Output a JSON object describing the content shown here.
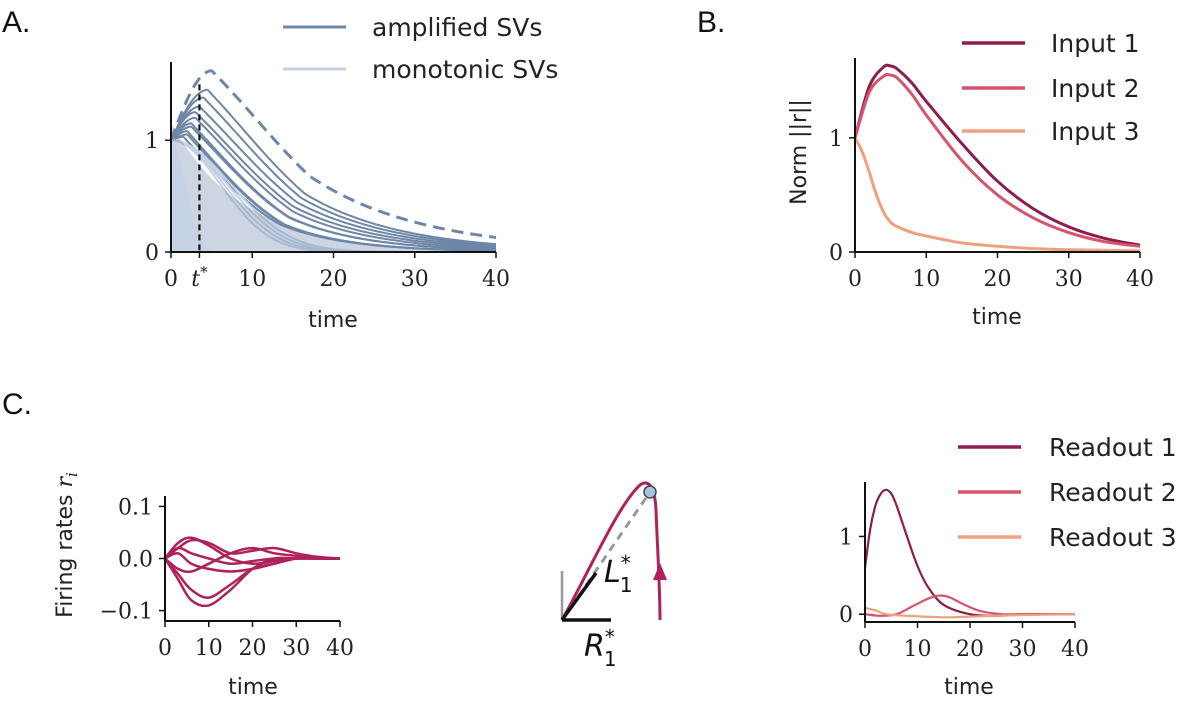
{
  "panels": {
    "a": {
      "letter": "A."
    },
    "b": {
      "letter": "B."
    },
    "c": {
      "letter": "C."
    }
  },
  "chart_data": [
    {
      "id": "A",
      "type": "line",
      "xlabel": "time",
      "ylabel": "",
      "xlim": [
        0,
        40
      ],
      "ylim": [
        0,
        1.7
      ],
      "xticks": [
        "0",
        "t*",
        "10",
        "20",
        "30",
        "40"
      ],
      "xtick_values": [
        0,
        3.5,
        10,
        20,
        30,
        40
      ],
      "yticks": [
        "0",
        "1"
      ],
      "ytick_values": [
        0,
        1
      ],
      "legend": {
        "placement": "top-center",
        "entries": [
          {
            "label": "amplified SVs",
            "color": "#6e87a8"
          },
          {
            "label": "monotonic SVs",
            "color": "#c3d2e6"
          }
        ]
      },
      "annotations": [
        {
          "type": "vline",
          "x": 3.5,
          "style": "dashed",
          "color": "#111111"
        }
      ],
      "series": [
        {
          "group": "envelope",
          "style": "dashed",
          "color": "#6e87a8",
          "peak_time": 5,
          "peak": 1.62,
          "end": 0.13
        },
        {
          "group": "amplified SVs",
          "color": "#6e87a8",
          "peak_time": 4.5,
          "peak": 1.45,
          "end": 0.07
        },
        {
          "group": "amplified SVs",
          "color": "#6e87a8",
          "peak_time": 4,
          "peak": 1.38,
          "end": 0.06
        },
        {
          "group": "amplified SVs",
          "color": "#6e87a8",
          "peak_time": 3.5,
          "peak": 1.3,
          "end": 0.05
        },
        {
          "group": "amplified SVs",
          "color": "#6e87a8",
          "peak_time": 3,
          "peak": 1.25,
          "end": 0.04
        },
        {
          "group": "amplified SVs",
          "color": "#6e87a8",
          "peak_time": 3,
          "peak": 1.2,
          "end": 0.03
        },
        {
          "group": "amplified SVs",
          "color": "#6e87a8",
          "peak_time": 2.5,
          "peak": 1.15,
          "end": 0.02
        },
        {
          "group": "amplified SVs",
          "color": "#6e87a8",
          "peak_time": 2.5,
          "peak": 1.12,
          "end": 0.02
        },
        {
          "group": "amplified SVs",
          "color": "#6e87a8",
          "peak_time": 2,
          "peak": 1.08,
          "end": 0.01
        },
        {
          "group": "amplified SVs",
          "color": "#6e87a8",
          "peak_time": 2,
          "peak": 1.05,
          "end": 0.01
        },
        {
          "group": "amplified SVs",
          "color": "#6e87a8",
          "peak_time": 1.5,
          "peak": 1.03,
          "end": 0.01
        },
        {
          "group": "monotonic SVs",
          "color": "#c3d2e6",
          "peak_time": 0,
          "peak": 1,
          "end": 0.0
        },
        {
          "group": "monotonic SVs",
          "color": "#c3d2e6",
          "peak_time": 0,
          "peak": 1,
          "end": 0.0
        },
        {
          "group": "monotonic SVs",
          "color": "#c3d2e6",
          "peak_time": 0,
          "peak": 1,
          "end": 0.0
        },
        {
          "group": "monotonic SVs",
          "color": "#c3d2e6",
          "peak_time": 0,
          "peak": 1,
          "end": 0.0
        }
      ]
    },
    {
      "id": "B",
      "type": "line",
      "xlabel": "time",
      "ylabel": "Norm ||r||",
      "xlim": [
        0,
        40
      ],
      "ylim": [
        0,
        1.7
      ],
      "xticks": [
        "0",
        "10",
        "20",
        "30",
        "40"
      ],
      "yticks": [
        "0",
        "1"
      ],
      "legend": {
        "placement": "top-right"
      },
      "series": [
        {
          "name": "Input 1",
          "color": "#8e1c4e",
          "x": [
            0,
            2,
            4,
            5,
            6,
            8,
            10,
            15,
            20,
            25,
            30,
            35,
            40
          ],
          "y": [
            1.0,
            1.45,
            1.62,
            1.63,
            1.6,
            1.48,
            1.32,
            0.95,
            0.62,
            0.38,
            0.22,
            0.12,
            0.06
          ]
        },
        {
          "name": "Input 2",
          "color": "#d6556b",
          "x": [
            0,
            2,
            4,
            5,
            6,
            8,
            10,
            15,
            20,
            25,
            30,
            35,
            40
          ],
          "y": [
            1.0,
            1.4,
            1.54,
            1.55,
            1.52,
            1.38,
            1.2,
            0.8,
            0.5,
            0.3,
            0.17,
            0.09,
            0.05
          ]
        },
        {
          "name": "Input 3",
          "color": "#f0a07e",
          "x": [
            0,
            1,
            2,
            3,
            4,
            5,
            6,
            8,
            10,
            15,
            20,
            25,
            30,
            40
          ],
          "y": [
            1.0,
            0.88,
            0.7,
            0.5,
            0.35,
            0.26,
            0.22,
            0.17,
            0.14,
            0.08,
            0.05,
            0.03,
            0.02,
            0.01
          ]
        }
      ]
    },
    {
      "id": "C1",
      "type": "line",
      "xlabel": "time",
      "ylabel": "Firing rates r_i",
      "xlim": [
        0,
        40
      ],
      "ylim": [
        -0.12,
        0.12
      ],
      "xticks": [
        "0",
        "10",
        "20",
        "30",
        "40"
      ],
      "yticks": [
        "0.1",
        "0.0",
        "−0.1"
      ],
      "ytick_values": [
        0.1,
        0.0,
        -0.1
      ],
      "series_color": "#b0215a",
      "series": [
        {
          "x": [
            0,
            3,
            6,
            10,
            15,
            20,
            25,
            30,
            35,
            40
          ],
          "y": [
            0.0,
            0.03,
            0.04,
            0.025,
            0.0,
            -0.01,
            -0.005,
            0.0,
            0.0,
            0.0
          ]
        },
        {
          "x": [
            0,
            3,
            6,
            10,
            15,
            20,
            25,
            30,
            35,
            40
          ],
          "y": [
            0.0,
            0.02,
            0.035,
            0.03,
            0.01,
            0.015,
            0.02,
            0.01,
            0.003,
            0.0
          ]
        },
        {
          "x": [
            0,
            3,
            6,
            10,
            15,
            20,
            25,
            30,
            35,
            40
          ],
          "y": [
            0.0,
            -0.04,
            -0.08,
            -0.09,
            -0.06,
            -0.02,
            0.0,
            0.0,
            0.0,
            0.0
          ]
        },
        {
          "x": [
            0,
            3,
            6,
            10,
            15,
            20,
            25,
            30,
            35,
            40
          ],
          "y": [
            0.0,
            -0.03,
            -0.06,
            -0.075,
            -0.05,
            -0.02,
            -0.01,
            0.0,
            0.0,
            0.0
          ]
        },
        {
          "x": [
            0,
            3,
            6,
            10,
            15,
            20,
            25,
            30,
            35,
            40
          ],
          "y": [
            0.0,
            0.01,
            -0.01,
            -0.02,
            -0.025,
            -0.02,
            -0.01,
            0.0,
            0.0,
            0.0
          ]
        },
        {
          "x": [
            0,
            3,
            6,
            10,
            15,
            20,
            25,
            30,
            35,
            40
          ],
          "y": [
            0.0,
            -0.02,
            -0.025,
            -0.01,
            0.01,
            0.02,
            0.01,
            0.005,
            0.0,
            0.0
          ]
        },
        {
          "x": [
            0,
            3,
            6,
            10,
            15,
            20,
            25,
            30,
            35,
            40
          ],
          "y": [
            0.0,
            0.02,
            0.01,
            0.0,
            -0.01,
            -0.005,
            0.0,
            0.0,
            0.0,
            0.0
          ]
        }
      ]
    },
    {
      "id": "C3",
      "type": "line",
      "xlabel": "time",
      "ylabel": "",
      "xlim": [
        0,
        40
      ],
      "ylim": [
        -0.1,
        1.7
      ],
      "xticks": [
        "0",
        "10",
        "20",
        "30",
        "40"
      ],
      "yticks": [
        "0",
        "1"
      ],
      "legend": {
        "placement": "top-right"
      },
      "series": [
        {
          "name": "Readout 1",
          "color": "#8e1c4e",
          "x": [
            0,
            1,
            2,
            3,
            4,
            5,
            6,
            8,
            10,
            12,
            15,
            20,
            25,
            30,
            40
          ],
          "y": [
            0.6,
            1.1,
            1.4,
            1.55,
            1.6,
            1.55,
            1.4,
            1.0,
            0.62,
            0.35,
            0.12,
            0.0,
            -0.02,
            0.0,
            0.0
          ]
        },
        {
          "name": "Readout 2",
          "color": "#d6556b",
          "x": [
            0,
            3,
            6,
            9,
            12,
            14,
            16,
            19,
            22,
            26,
            30,
            40
          ],
          "y": [
            0.0,
            -0.02,
            0.0,
            0.1,
            0.2,
            0.24,
            0.22,
            0.12,
            0.04,
            0.0,
            0.0,
            0.0
          ]
        },
        {
          "name": "Readout 3",
          "color": "#f0a07e",
          "x": [
            0,
            2,
            4,
            8,
            15,
            20,
            25,
            30,
            40
          ],
          "y": [
            0.08,
            0.05,
            0.0,
            -0.02,
            -0.04,
            -0.03,
            -0.02,
            -0.01,
            0.0
          ]
        }
      ]
    },
    {
      "id": "C2",
      "type": "diagram",
      "labels": {
        "l": "L",
        "l_sub": "1",
        "l_sup": "*",
        "r": "R",
        "r_sub": "1",
        "r_sup": "*"
      }
    }
  ]
}
